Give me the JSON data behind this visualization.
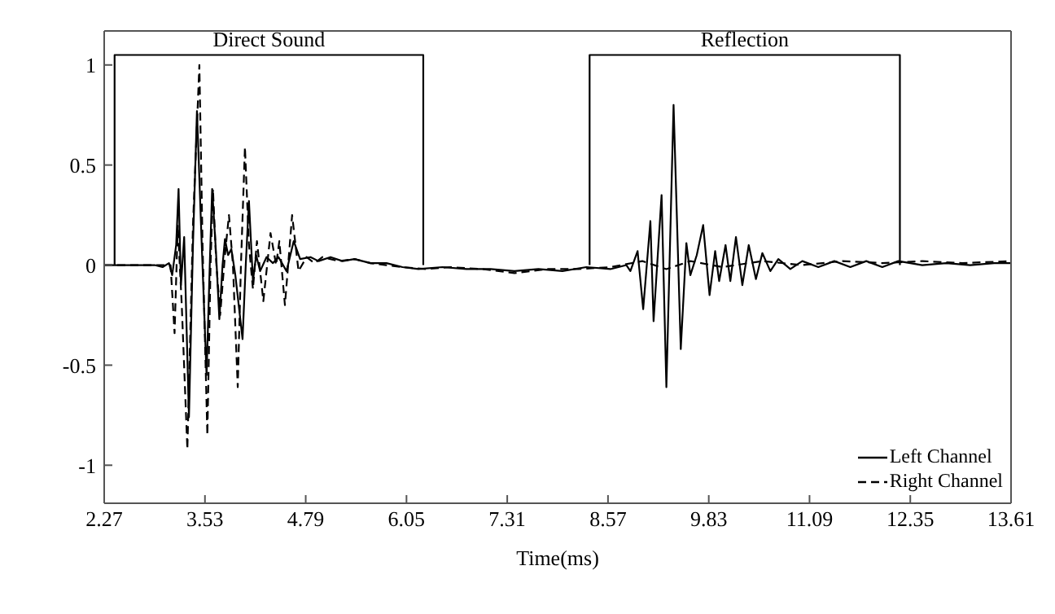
{
  "chart_data": {
    "type": "line",
    "xlabel": "Time(ms)",
    "xlim": [
      2.27,
      13.61
    ],
    "xticks": [
      2.27,
      3.53,
      4.79,
      6.05,
      7.31,
      8.57,
      9.83,
      11.09,
      12.35,
      13.61
    ],
    "ylim": [
      -1.19,
      1.17
    ],
    "yticks": [
      -1,
      -0.5,
      0,
      0.5,
      1
    ],
    "grid": false,
    "legend": "bottom right",
    "marker": "none",
    "series": [
      {
        "name": "Left Channel",
        "color": "#000000",
        "line_style": "solid",
        "x": [
          2.27,
          2.6,
          2.9,
          3.0,
          3.08,
          3.12,
          3.17,
          3.2,
          3.23,
          3.27,
          3.33,
          3.38,
          3.43,
          3.49,
          3.55,
          3.59,
          3.62,
          3.67,
          3.71,
          3.75,
          3.78,
          3.82,
          3.86,
          3.91,
          4.0,
          4.04,
          4.08,
          4.13,
          4.17,
          4.22,
          4.3,
          4.38,
          4.45,
          4.55,
          4.64,
          4.72,
          4.85,
          4.95,
          5.1,
          5.25,
          5.4,
          5.6,
          5.8,
          6.0,
          6.2,
          6.5,
          6.8,
          7.1,
          7.4,
          7.7,
          8.0,
          8.3,
          8.6,
          8.8,
          8.85,
          8.94,
          9.01,
          9.1,
          9.14,
          9.24,
          9.3,
          9.39,
          9.48,
          9.55,
          9.6,
          9.68,
          9.76,
          9.84,
          9.91,
          9.96,
          10.04,
          10.1,
          10.17,
          10.25,
          10.33,
          10.42,
          10.5,
          10.6,
          10.7,
          10.85,
          11.0,
          11.2,
          11.4,
          11.6,
          11.8,
          12.0,
          12.2,
          12.5,
          12.8,
          13.1,
          13.4,
          13.61
        ],
        "values": [
          0,
          0,
          0,
          -0.01,
          0.01,
          -0.05,
          0.1,
          0.38,
          -0.1,
          0.14,
          -0.76,
          0.1,
          0.77,
          0.1,
          -0.55,
          0,
          0.38,
          0.05,
          -0.27,
          0,
          0.13,
          0.05,
          0.08,
          -0.05,
          -0.37,
          0,
          0.32,
          -0.08,
          0.05,
          -0.03,
          0.04,
          0.01,
          0.04,
          -0.03,
          0.12,
          0.03,
          0.04,
          0.02,
          0.04,
          0.02,
          0.03,
          0.01,
          0.01,
          -0.01,
          -0.02,
          -0.01,
          -0.02,
          -0.02,
          -0.03,
          -0.02,
          -0.03,
          -0.01,
          -0.02,
          0,
          -0.03,
          0.07,
          -0.22,
          0.22,
          -0.28,
          0.35,
          -0.61,
          0.8,
          -0.42,
          0.11,
          -0.05,
          0.05,
          0.2,
          -0.15,
          0.07,
          -0.08,
          0.1,
          -0.08,
          0.14,
          -0.1,
          0.1,
          -0.07,
          0.06,
          -0.03,
          0.03,
          -0.02,
          0.02,
          -0.01,
          0.02,
          -0.01,
          0.02,
          -0.01,
          0.02,
          0,
          0.01,
          0,
          0.01,
          0.01
        ]
      },
      {
        "name": "Right Channel",
        "color": "#000000",
        "line_style": "dashed",
        "x": [
          2.27,
          2.9,
          3.1,
          3.15,
          3.19,
          3.24,
          3.31,
          3.38,
          3.46,
          3.5,
          3.56,
          3.6,
          3.63,
          3.67,
          3.72,
          3.78,
          3.83,
          3.88,
          3.94,
          3.98,
          4.03,
          4.08,
          4.13,
          4.18,
          4.26,
          4.35,
          4.42,
          4.46,
          4.53,
          4.62,
          4.7,
          4.8,
          4.9,
          5.0,
          5.2,
          5.4,
          5.6,
          5.8,
          6.0,
          6.3,
          6.6,
          7.0,
          7.4,
          7.8,
          8.2,
          8.6,
          9.0,
          9.3,
          9.6,
          10.0,
          10.5,
          11.0,
          11.5,
          12.0,
          12.5,
          13.0,
          13.61
        ],
        "values": [
          0,
          0,
          0,
          -0.34,
          0.2,
          -0.2,
          -0.92,
          0.2,
          1.0,
          0.1,
          -0.85,
          0,
          0.38,
          0.02,
          -0.25,
          0.05,
          0.25,
          0,
          -0.61,
          0,
          0.59,
          0.1,
          -0.12,
          0.12,
          -0.18,
          0.16,
          0,
          0.12,
          -0.2,
          0.25,
          -0.03,
          0.04,
          0.01,
          0.04,
          0.02,
          0.03,
          0.01,
          0,
          -0.01,
          -0.02,
          -0.01,
          -0.02,
          -0.04,
          -0.02,
          -0.02,
          -0.01,
          0.02,
          -0.02,
          0.02,
          -0.01,
          0.02,
          0,
          0.02,
          0.01,
          0.02,
          0.01,
          0.02
        ]
      },
      {
        "name": "Direct Sound",
        "type": "step",
        "color": "#000000",
        "line_style": "solid",
        "x": [
          2.4,
          2.4,
          6.26
        ],
        "values": [
          0,
          1.05,
          0
        ]
      },
      {
        "name": "Reflection",
        "type": "step",
        "color": "#000000",
        "line_style": "solid",
        "x": [
          8.34,
          8.34,
          12.22
        ],
        "values": [
          0,
          1.05,
          0
        ]
      }
    ]
  }
}
